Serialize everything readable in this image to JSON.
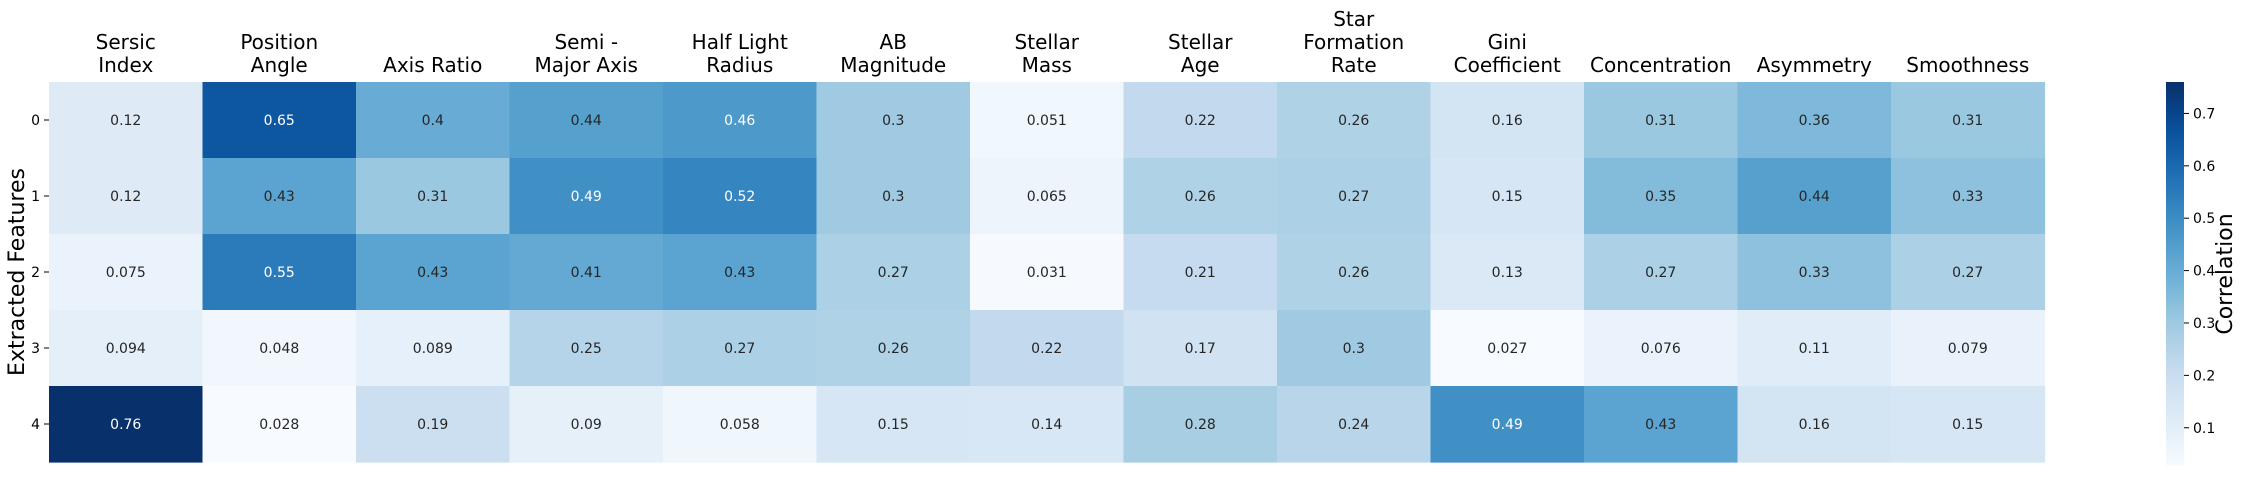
{
  "chart_data": {
    "type": "heatmap",
    "title": "",
    "xlabel": "",
    "ylabel": "Extracted Features",
    "columns": [
      [
        "Sersic",
        "Index"
      ],
      [
        "Position",
        "Angle"
      ],
      [
        "Axis Ratio"
      ],
      [
        "Semi -",
        "Major Axis"
      ],
      [
        "Half Light",
        "Radius"
      ],
      [
        "AB",
        "Magnitude"
      ],
      [
        "Stellar",
        "Mass"
      ],
      [
        "Stellar",
        "Age"
      ],
      [
        "Star",
        "Formation",
        "Rate"
      ],
      [
        "Gini",
        "Coefficient"
      ],
      [
        "Concentration"
      ],
      [
        "Asymmetry"
      ],
      [
        "Smoothness"
      ]
    ],
    "rows": [
      "0",
      "1",
      "2",
      "3",
      "4"
    ],
    "values": [
      [
        0.12,
        0.65,
        0.4,
        0.44,
        0.46,
        0.3,
        0.051,
        0.22,
        0.26,
        0.16,
        0.31,
        0.36,
        0.31
      ],
      [
        0.12,
        0.43,
        0.31,
        0.49,
        0.52,
        0.3,
        0.065,
        0.26,
        0.27,
        0.15,
        0.35,
        0.44,
        0.33
      ],
      [
        0.075,
        0.55,
        0.43,
        0.41,
        0.43,
        0.27,
        0.031,
        0.21,
        0.26,
        0.13,
        0.27,
        0.33,
        0.27
      ],
      [
        0.094,
        0.048,
        0.089,
        0.25,
        0.27,
        0.26,
        0.22,
        0.17,
        0.3,
        0.027,
        0.076,
        0.11,
        0.079
      ],
      [
        0.76,
        0.028,
        0.19,
        0.09,
        0.058,
        0.15,
        0.14,
        0.28,
        0.24,
        0.49,
        0.43,
        0.16,
        0.15
      ]
    ],
    "colorbar": {
      "label": "Correlation",
      "vmin": 0.027,
      "vmax": 0.76,
      "ticks": [
        "0.1",
        "0.2",
        "0.3",
        "0.4",
        "0.5",
        "0.6",
        "0.7"
      ],
      "colormap": "Blues"
    },
    "colors": {
      "low": "#f7fbff",
      "high": "#08306b",
      "text_dark": "#262626",
      "text_light": "#ffffff"
    },
    "grid": false,
    "legend": "colorbar-right"
  }
}
